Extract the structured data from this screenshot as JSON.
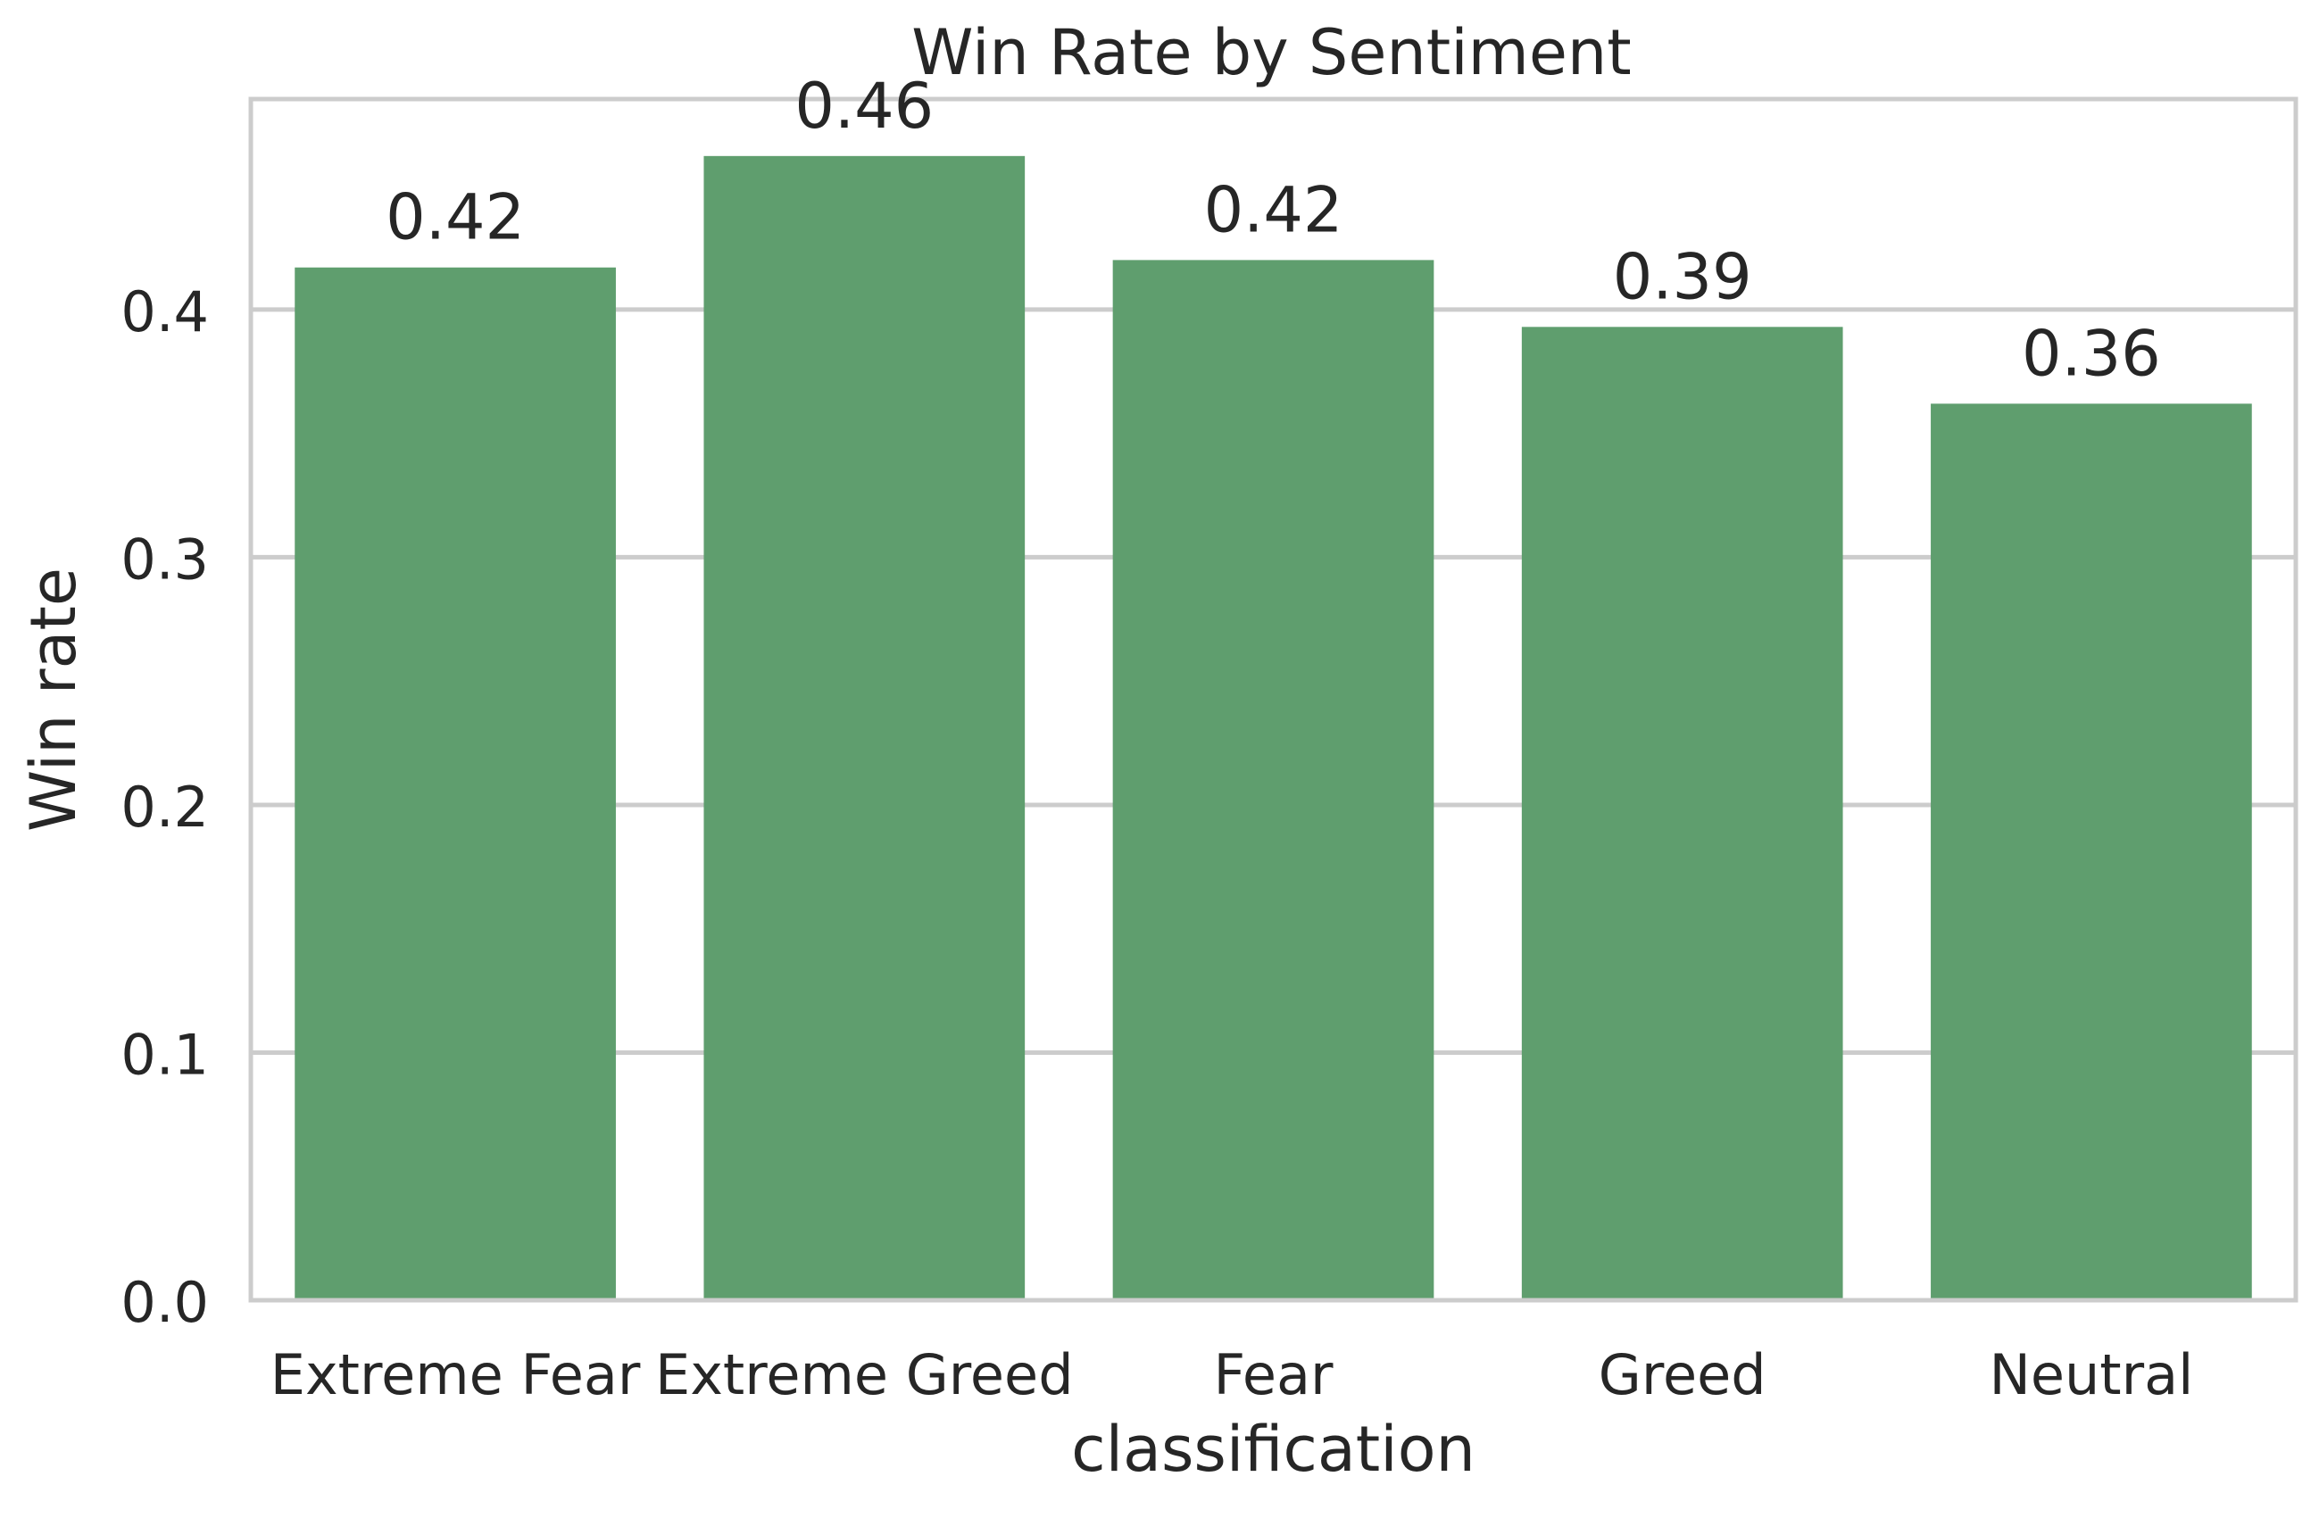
{
  "chart_data": {
    "type": "bar",
    "title": "Win Rate by Sentiment",
    "xlabel": "classification",
    "ylabel": "Win rate",
    "categories": [
      "Extreme Fear",
      "Extreme Greed",
      "Fear",
      "Greed",
      "Neutral"
    ],
    "values": [
      0.417,
      0.462,
      0.42,
      0.393,
      0.362
    ],
    "data_labels": [
      "0.42",
      "0.46",
      "0.42",
      "0.39",
      "0.36"
    ],
    "ylim": [
      0,
      0.485
    ],
    "yticks": [
      0.0,
      0.1,
      0.2,
      0.3,
      0.4
    ],
    "ytick_labels": [
      "0.0",
      "0.1",
      "0.2",
      "0.3",
      "0.4"
    ],
    "grid": "horizontal",
    "bar_color": "#5f9e6e",
    "grid_color": "#cccccc",
    "frame_color": "#cccccc",
    "text_color": "#262626"
  }
}
